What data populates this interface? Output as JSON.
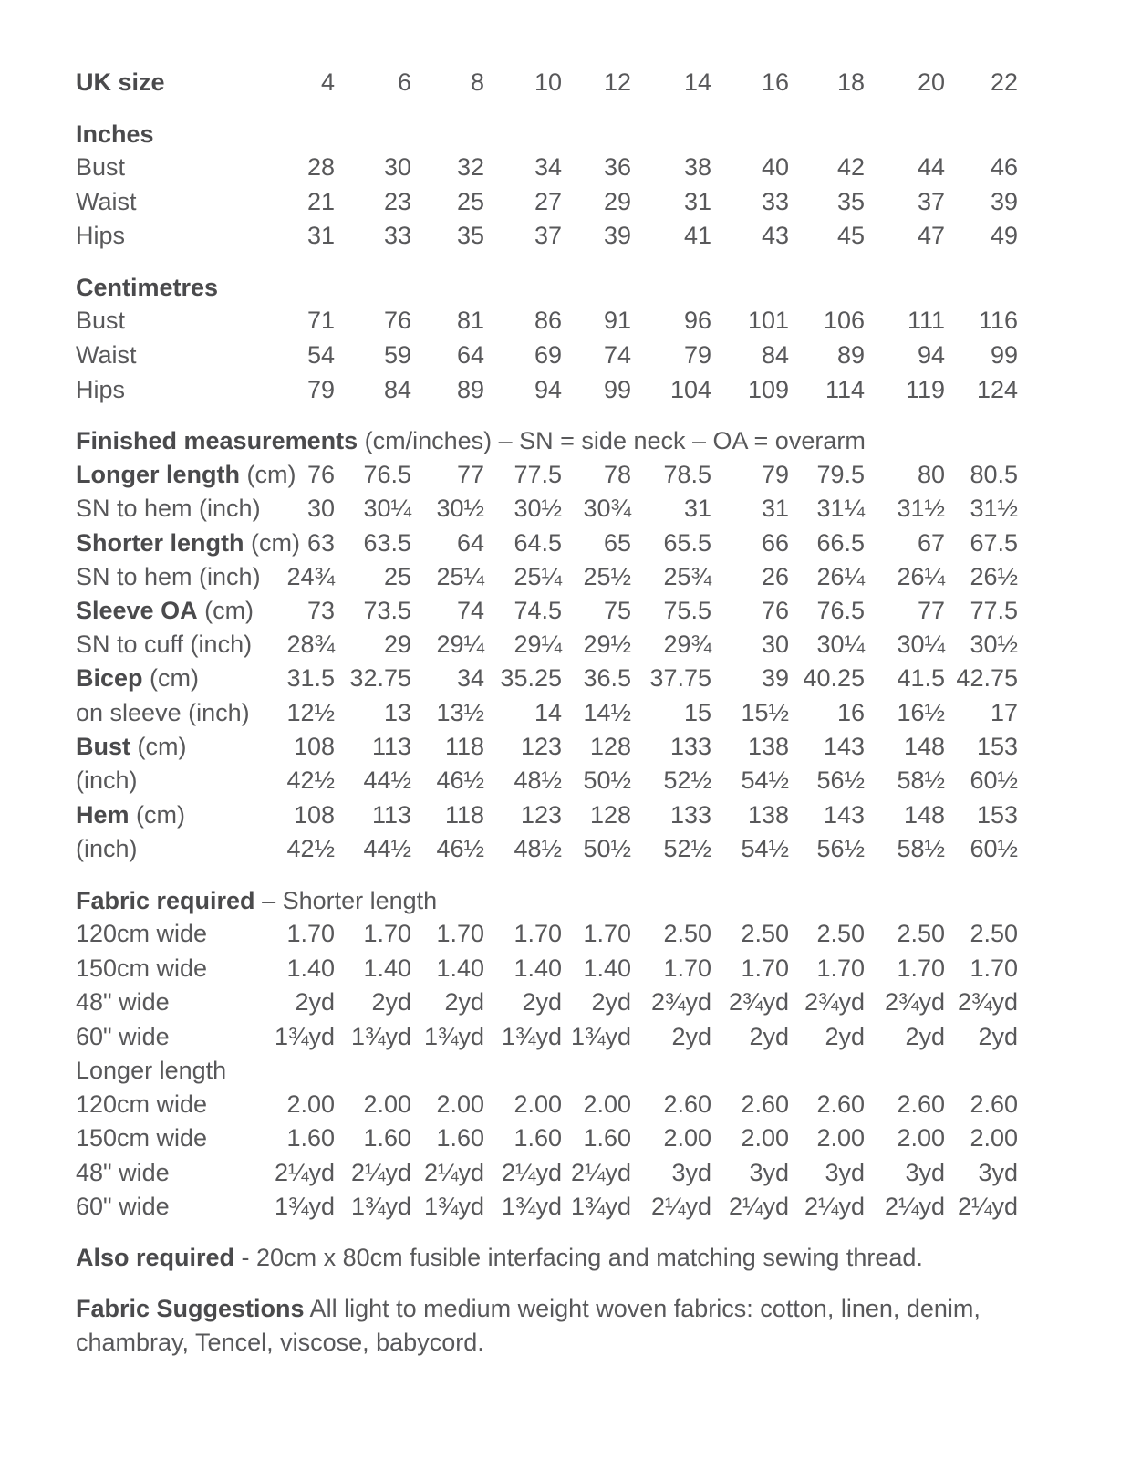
{
  "header": {
    "label": "UK size",
    "sizes": [
      "4",
      "6",
      "8",
      "10",
      "12",
      "14",
      "16",
      "18",
      "20",
      "22"
    ]
  },
  "sections": [
    {
      "title_bold": "Inches",
      "title_rest": "",
      "rows": [
        {
          "bold": "",
          "rest": "Bust",
          "values": [
            "28",
            "30",
            "32",
            "34",
            "36",
            "38",
            "40",
            "42",
            "44",
            "46"
          ]
        },
        {
          "bold": "",
          "rest": "Waist",
          "values": [
            "21",
            "23",
            "25",
            "27",
            "29",
            "31",
            "33",
            "35",
            "37",
            "39"
          ]
        },
        {
          "bold": "",
          "rest": "Hips",
          "values": [
            "31",
            "33",
            "35",
            "37",
            "39",
            "41",
            "43",
            "45",
            "47",
            "49"
          ]
        }
      ]
    },
    {
      "title_bold": "Centimetres",
      "title_rest": "",
      "rows": [
        {
          "bold": "",
          "rest": "Bust",
          "values": [
            "71",
            "76",
            "81",
            "86",
            "91",
            "96",
            "101",
            "106",
            "111",
            "116"
          ]
        },
        {
          "bold": "",
          "rest": "Waist",
          "values": [
            "54",
            "59",
            "64",
            "69",
            "74",
            "79",
            "84",
            "89",
            "94",
            "99"
          ]
        },
        {
          "bold": "",
          "rest": "Hips",
          "values": [
            "79",
            "84",
            "89",
            "94",
            "99",
            "104",
            "109",
            "114",
            "119",
            "124"
          ]
        }
      ]
    },
    {
      "title_bold": "Finished measurements",
      "title_rest": " (cm/inches) – SN = side neck – OA = overarm",
      "rows": [
        {
          "bold": "Longer length",
          "rest": " (cm)",
          "values": [
            "76",
            "76.5",
            "77",
            "77.5",
            "78",
            "78.5",
            "79",
            "79.5",
            "80",
            "80.5"
          ]
        },
        {
          "bold": "",
          "rest": "SN to hem (inch)",
          "values": [
            "30",
            "30¼",
            "30½",
            "30½",
            "30¾",
            "31",
            "31",
            "31¼",
            "31½",
            "31½"
          ]
        },
        {
          "bold": "Shorter length",
          "rest": " (cm)",
          "values": [
            "63",
            "63.5",
            "64",
            "64.5",
            "65",
            "65.5",
            "66",
            "66.5",
            "67",
            "67.5"
          ]
        },
        {
          "bold": "",
          "rest": "SN to hem (inch)",
          "values": [
            "24¾",
            "25",
            "25¼",
            "25¼",
            "25½",
            "25¾",
            "26",
            "26¼",
            "26¼",
            "26½"
          ]
        },
        {
          "bold": "Sleeve OA",
          "rest": " (cm)",
          "values": [
            "73",
            "73.5",
            "74",
            "74.5",
            "75",
            "75.5",
            "76",
            "76.5",
            "77",
            "77.5"
          ]
        },
        {
          "bold": "",
          "rest": "SN to cuff (inch)",
          "values": [
            "28¾",
            "29",
            "29¼",
            "29¼",
            "29½",
            "29¾",
            "30",
            "30¼",
            "30¼",
            "30½"
          ]
        },
        {
          "bold": "Bicep",
          "rest": " (cm)",
          "values": [
            "31.5",
            "32.75",
            "34",
            "35.25",
            "36.5",
            "37.75",
            "39",
            "40.25",
            "41.5",
            "42.75"
          ]
        },
        {
          "bold": "",
          "rest": "on sleeve (inch)",
          "values": [
            "12½",
            "13",
            "13½",
            "14",
            "14½",
            "15",
            "15½",
            "16",
            "16½",
            "17"
          ]
        },
        {
          "bold": "Bust",
          "rest": " (cm)",
          "values": [
            "108",
            "113",
            "118",
            "123",
            "128",
            "133",
            "138",
            "143",
            "148",
            "153"
          ]
        },
        {
          "bold": "",
          "rest": "(inch)",
          "values": [
            "42½",
            "44½",
            "46½",
            "48½",
            "50½",
            "52½",
            "54½",
            "56½",
            "58½",
            "60½"
          ]
        },
        {
          "bold": "Hem",
          "rest": " (cm)",
          "values": [
            "108",
            "113",
            "118",
            "123",
            "128",
            "133",
            "138",
            "143",
            "148",
            "153"
          ]
        },
        {
          "bold": "",
          "rest": "(inch)",
          "values": [
            "42½",
            "44½",
            "46½",
            "48½",
            "50½",
            "52½",
            "54½",
            "56½",
            "58½",
            "60½"
          ]
        }
      ]
    },
    {
      "title_bold": "Fabric required",
      "title_rest": " – Shorter length",
      "rows": [
        {
          "bold": "",
          "rest": "120cm wide",
          "values": [
            "1.70",
            "1.70",
            "1.70",
            "1.70",
            "1.70",
            "2.50",
            "2.50",
            "2.50",
            "2.50",
            "2.50"
          ]
        },
        {
          "bold": "",
          "rest": "150cm wide",
          "values": [
            "1.40",
            "1.40",
            "1.40",
            "1.40",
            "1.40",
            "1.70",
            "1.70",
            "1.70",
            "1.70",
            "1.70"
          ]
        },
        {
          "bold": "",
          "rest": "48\" wide",
          "values": [
            "2yd",
            "2yd",
            "2yd",
            "2yd",
            "2yd",
            "2¾yd",
            "2¾yd",
            "2¾yd",
            "2¾yd",
            "2¾yd"
          ]
        },
        {
          "bold": "",
          "rest": "60\" wide",
          "values": [
            "1¾yd",
            "1¾yd",
            "1¾yd",
            "1¾yd",
            "1¾yd",
            "2yd",
            "2yd",
            "2yd",
            "2yd",
            "2yd"
          ]
        },
        {
          "bold": "",
          "rest": "Longer length",
          "values": []
        },
        {
          "bold": "",
          "rest": "120cm wide",
          "values": [
            "2.00",
            "2.00",
            "2.00",
            "2.00",
            "2.00",
            "2.60",
            "2.60",
            "2.60",
            "2.60",
            "2.60"
          ]
        },
        {
          "bold": "",
          "rest": "150cm wide",
          "values": [
            "1.60",
            "1.60",
            "1.60",
            "1.60",
            "1.60",
            "2.00",
            "2.00",
            "2.00",
            "2.00",
            "2.00"
          ]
        },
        {
          "bold": "",
          "rest": "48\" wide",
          "values": [
            "2¼yd",
            "2¼yd",
            "2¼yd",
            "2¼yd",
            "2¼yd",
            "3yd",
            "3yd",
            "3yd",
            "3yd",
            "3yd"
          ]
        },
        {
          "bold": "",
          "rest": "60\" wide",
          "values": [
            "1¾yd",
            "1¾yd",
            "1¾yd",
            "1¾yd",
            "1¾yd",
            "2¼yd",
            "2¼yd",
            "2¼yd",
            "2¼yd",
            "2¼yd"
          ]
        }
      ]
    }
  ],
  "also_required": {
    "bold": "Also required",
    "rest": " - 20cm x 80cm fusible interfacing and matching sewing thread."
  },
  "fabric_suggestions": {
    "bold": "Fabric Suggestions",
    "rest": " All light to medium weight woven fabrics: cotton, linen, denim, chambray, Tencel, viscose, babycord."
  }
}
